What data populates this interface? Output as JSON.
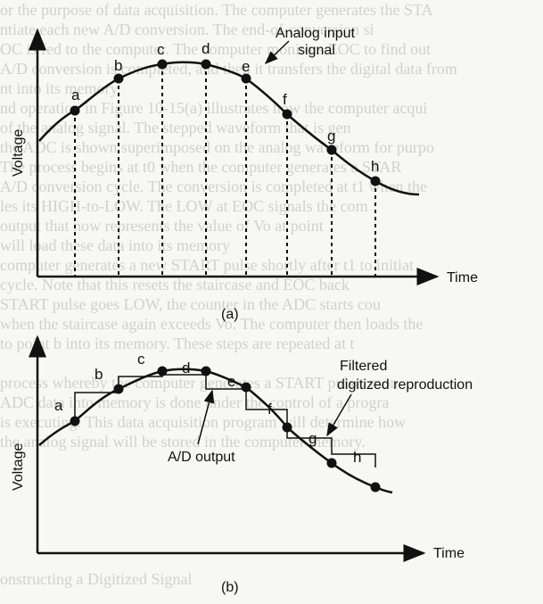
{
  "panel_a": {
    "y_axis_label": "Voltage",
    "x_axis_label": "Time",
    "annotation": [
      "Analog input",
      "signal"
    ],
    "point_labels": [
      "a",
      "b",
      "c",
      "d",
      "e",
      "f",
      "g",
      "h"
    ],
    "panel_label": "(a)"
  },
  "panel_b": {
    "y_axis_label": "Voltage",
    "x_axis_label": "Time",
    "annotation_filtered": [
      "Filtered",
      "digitized reproduction"
    ],
    "annotation_ad": "A/D output",
    "point_labels": [
      "a",
      "b",
      "c",
      "d",
      "e",
      "f",
      "g",
      "h"
    ],
    "panel_label": "(b)"
  },
  "background_text": [
    "or the purpose of data acquisition. The computer generates the STA",
    "ntiate each new A/D conversion. The end-of-conversion si",
    "OC is fed to the computer. The computer monitors EOC to find out",
    "A/D conversion is completed, and then it transfers the digital data from",
    "nt into its memory.",
    "nd operation in Figure 10-15(a) illustrates how the computer acqui",
    "of the analog signal. The stepped waveform that is gen",
    "the ADC is shown superimposed on the analog waveform for purpo",
    "The process begins at t0 when the computer generates a STAR",
    "A/D conversion cycle. The conversion is completed at t1 when the",
    "les its HIGH-to-LOW. The LOW at EOC signals the com",
    "output that now represents the value of Vo at point",
    "will load these data into its memory",
    "computer generates a new START pulse shortly after t1 to initiat",
    "cycle. Note that this resets the staircase and EOC back",
    "START pulse goes LOW, the counter in the ADC starts cou",
    "when the staircase again exceeds Vo. The computer then loads the",
    "to point b into its memory. These steps are repeated at t",
    "",
    "process whereby the computer generates a START pulse, mon",
    "ADC data into memory is done under the control of a progra",
    "is executing. This data acquisition program will determine how",
    "the analog signal will be stored in the computer memory.",
    "",
    "",
    "",
    "",
    "",
    "",
    "onstructing a Digitized Signal"
  ]
}
